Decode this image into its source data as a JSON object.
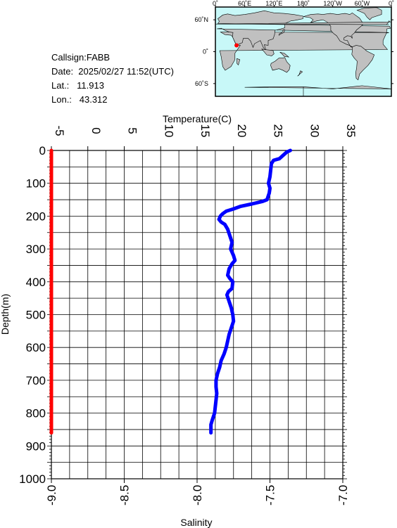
{
  "info": {
    "callsign": "Callsign:FABB",
    "date": "Date:  2025/02/27 11:52(UTC)",
    "lat": "Lat.:   11.913",
    "lon": "Lon.:   43.312"
  },
  "map": {
    "top_labels": [
      "0˚",
      "60˚E",
      "120˚E",
      "180˚",
      "120˚W",
      "60˚W",
      "0˚"
    ],
    "lat_labels": [
      "60˚N",
      "0˚",
      "60˚S"
    ],
    "ocean_color": "#c8f8f8",
    "land_color": "#c0c0c0",
    "marker_color": "#ff0000",
    "marker": {
      "lat": 11.913,
      "lon": 43.312
    }
  },
  "chart_data": {
    "type": "line",
    "y_axis": {
      "label": "Depth(m)",
      "range": [
        0,
        1000
      ],
      "inverted": true,
      "ticks": [
        0,
        100,
        200,
        300,
        400,
        500,
        600,
        700,
        800,
        900,
        1000
      ]
    },
    "x_axis_top": {
      "label": "Temperature(C)",
      "range": [
        -5,
        35
      ],
      "ticks": [
        -5,
        0,
        5,
        10,
        15,
        20,
        25,
        30,
        35
      ]
    },
    "x_axis_bottom": {
      "label": "Salinity",
      "range": [
        -9.0,
        -7.0
      ],
      "ticks": [
        "-9.0",
        "-8.5",
        "-8.0",
        "-7.5",
        "-7.0"
      ]
    },
    "grid": true,
    "series": [
      {
        "color": "#0000ff",
        "axis": "temperature",
        "points": [
          [
            27.8,
            0
          ],
          [
            27.3,
            5
          ],
          [
            26.8,
            15
          ],
          [
            26.3,
            25
          ],
          [
            25.5,
            30
          ],
          [
            25.2,
            40
          ],
          [
            25.1,
            60
          ],
          [
            25.0,
            80
          ],
          [
            24.8,
            100
          ],
          [
            25.0,
            115
          ],
          [
            24.9,
            130
          ],
          [
            24.6,
            150
          ],
          [
            24.0,
            155
          ],
          [
            22.5,
            163
          ],
          [
            21.0,
            170
          ],
          [
            20.0,
            178
          ],
          [
            19.0,
            185
          ],
          [
            18.5,
            193
          ],
          [
            18.2,
            200
          ],
          [
            18.0,
            210
          ],
          [
            18.3,
            218
          ],
          [
            18.8,
            225
          ],
          [
            19.2,
            240
          ],
          [
            19.5,
            260
          ],
          [
            19.8,
            280
          ],
          [
            19.6,
            300
          ],
          [
            20.0,
            320
          ],
          [
            20.2,
            335
          ],
          [
            19.8,
            345
          ],
          [
            19.4,
            360
          ],
          [
            19.2,
            380
          ],
          [
            19.5,
            390
          ],
          [
            19.9,
            400
          ],
          [
            19.8,
            420
          ],
          [
            19.3,
            430
          ],
          [
            19.1,
            440
          ],
          [
            19.4,
            460
          ],
          [
            19.7,
            480
          ],
          [
            19.9,
            500
          ],
          [
            20.0,
            520
          ],
          [
            19.7,
            540
          ],
          [
            19.4,
            560
          ],
          [
            19.2,
            580
          ],
          [
            19.0,
            600
          ],
          [
            18.7,
            620
          ],
          [
            18.3,
            640
          ],
          [
            18.1,
            660
          ],
          [
            17.8,
            680
          ],
          [
            17.6,
            700
          ],
          [
            17.6,
            720
          ],
          [
            17.7,
            740
          ],
          [
            17.6,
            760
          ],
          [
            17.5,
            780
          ],
          [
            17.4,
            800
          ],
          [
            17.1,
            820
          ],
          [
            16.9,
            835
          ],
          [
            16.9,
            860
          ]
        ]
      },
      {
        "color": "#ff0000",
        "axis": "salinity",
        "points": [
          [
            -9.0,
            0
          ],
          [
            -9.0,
            860
          ]
        ]
      }
    ]
  }
}
